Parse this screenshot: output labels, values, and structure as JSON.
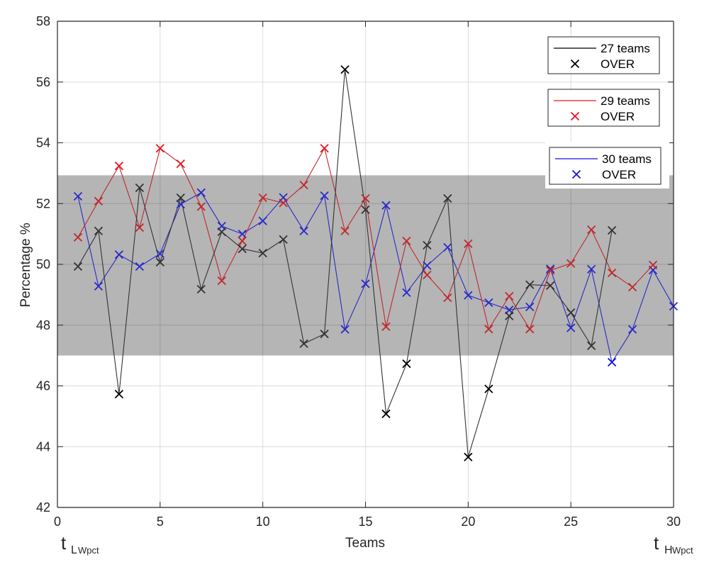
{
  "chart_data": {
    "type": "line",
    "title": "",
    "xlabel": "Teams",
    "ylabel": "Percentage %",
    "xlim": [
      0,
      30
    ],
    "ylim": [
      42,
      58
    ],
    "x_ticks": [
      0,
      5,
      10,
      15,
      20,
      25,
      30
    ],
    "y_ticks": [
      42,
      44,
      46,
      48,
      50,
      52,
      54,
      56,
      58
    ],
    "grid": true,
    "x_annotations": [
      {
        "main": "t",
        "sub": "L",
        "subsub": "Wpct",
        "at": 0
      },
      {
        "main": "t",
        "sub": "H",
        "subsub": "Wpct",
        "at": 30
      }
    ],
    "band": {
      "lower": 47.0,
      "upper": 52.93,
      "color": "#b3b3b3"
    },
    "legend_position": "top-right",
    "series": [
      {
        "name": "27 teams",
        "marker_label": "OVER",
        "color": "#000000",
        "line_color": "#333333",
        "x": [
          1,
          2,
          3,
          4,
          5,
          6,
          7,
          8,
          9,
          10,
          11,
          12,
          13,
          14,
          15,
          16,
          17,
          18,
          19,
          20,
          21,
          22,
          23,
          24,
          25,
          26,
          27
        ],
        "values": [
          49.93,
          51.1,
          45.73,
          52.52,
          50.07,
          52.19,
          49.18,
          51.07,
          50.51,
          50.37,
          50.82,
          47.39,
          47.71,
          56.41,
          51.8,
          45.08,
          46.73,
          50.63,
          52.17,
          43.66,
          45.9,
          48.3,
          49.33,
          49.3,
          48.41,
          47.32,
          51.12
        ]
      },
      {
        "name": "29 teams",
        "marker_label": "OVER",
        "color": "#e8141c",
        "line_color": "#c0282e",
        "x": [
          1,
          2,
          3,
          4,
          5,
          6,
          7,
          8,
          9,
          10,
          11,
          12,
          13,
          14,
          15,
          16,
          17,
          18,
          19,
          20,
          21,
          22,
          23,
          24,
          25,
          26,
          27,
          28,
          29
        ],
        "values": [
          50.89,
          52.08,
          53.24,
          51.21,
          53.82,
          53.31,
          51.9,
          49.46,
          50.77,
          52.19,
          52.02,
          52.61,
          53.82,
          51.1,
          52.17,
          47.95,
          50.77,
          49.65,
          48.9,
          50.68,
          47.87,
          48.95,
          47.87,
          49.8,
          50.03,
          51.14,
          49.72,
          49.25,
          49.98
        ]
      },
      {
        "name": "30 teams",
        "marker_label": "OVER",
        "color": "#1414e0",
        "line_color": "#2a2ac8",
        "x": [
          1,
          2,
          3,
          4,
          5,
          6,
          7,
          8,
          9,
          10,
          11,
          12,
          13,
          14,
          15,
          16,
          17,
          18,
          19,
          20,
          21,
          22,
          23,
          24,
          25,
          26,
          27,
          28,
          29,
          30
        ],
        "values": [
          52.24,
          49.28,
          50.32,
          49.93,
          50.35,
          51.98,
          52.36,
          51.26,
          51.0,
          51.43,
          52.2,
          51.1,
          52.26,
          47.86,
          49.36,
          51.94,
          49.07,
          49.96,
          50.56,
          48.98,
          48.74,
          48.5,
          48.6,
          49.85,
          47.91,
          49.84,
          46.78,
          47.86,
          49.81,
          48.62
        ]
      }
    ]
  }
}
